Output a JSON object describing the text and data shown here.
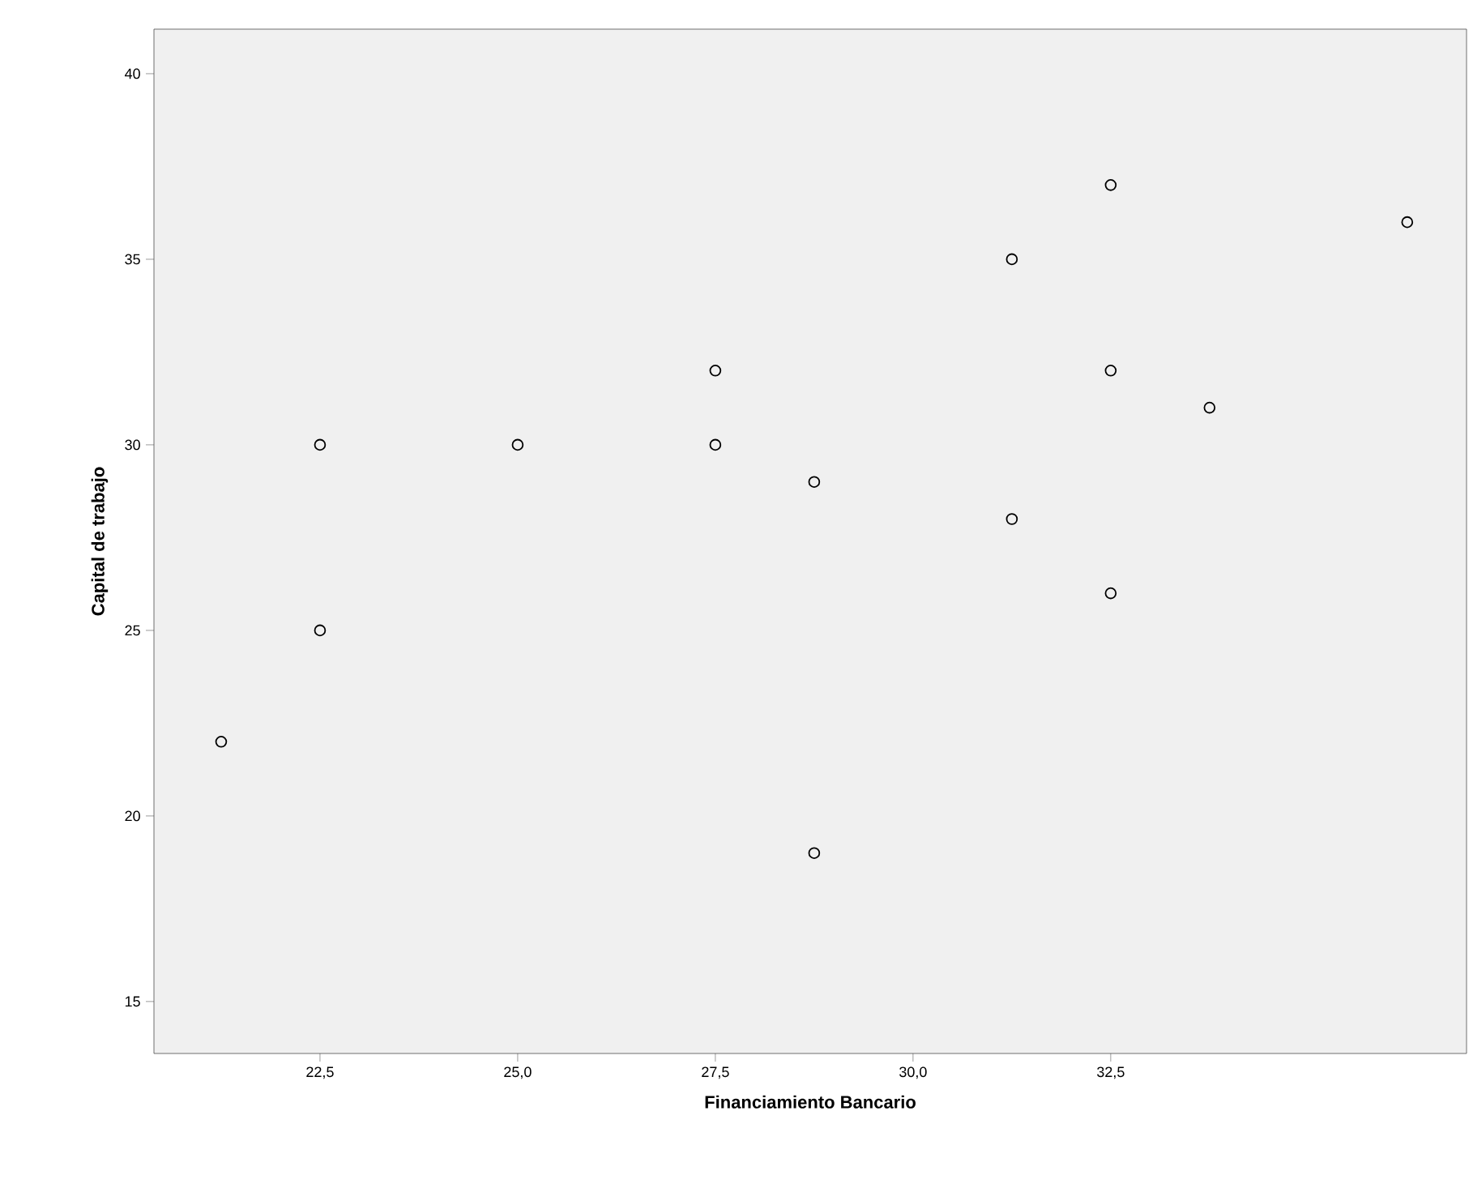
{
  "chart_data": {
    "type": "scatter",
    "xlabel": "Financiamiento Bancario",
    "ylabel": "Capital de trabajo",
    "x": [
      21.25,
      22.5,
      22.5,
      25.0,
      27.5,
      27.5,
      28.75,
      28.75,
      31.25,
      31.25,
      32.5,
      32.5,
      32.5,
      33.75,
      36.25
    ],
    "values": [
      22,
      30,
      25,
      30,
      32,
      30,
      29,
      19,
      35,
      28,
      37,
      32,
      26,
      31,
      36
    ],
    "color": "#000000",
    "marker": "circle",
    "xlim": [
      20.4,
      37.0
    ],
    "ylim": [
      13.6,
      41.2
    ],
    "xticks": [
      {
        "value": 22.5,
        "label": "22,5"
      },
      {
        "value": 25.0,
        "label": "25,0"
      },
      {
        "value": 27.5,
        "label": "27,5"
      },
      {
        "value": 30.0,
        "label": "30,0"
      },
      {
        "value": 32.5,
        "label": "32,5"
      }
    ],
    "yticks": [
      15,
      20,
      25,
      30,
      35,
      40
    ],
    "grid": false
  }
}
